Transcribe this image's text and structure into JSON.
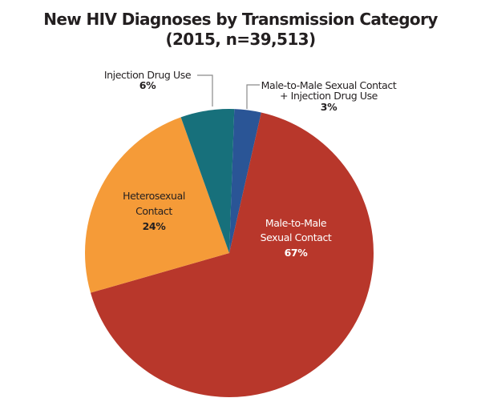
{
  "title": {
    "line1": "New HIV Diagnoses by Transmission Category",
    "line2": "(2015, n=39,513)"
  },
  "labels": {
    "msm_idu": {
      "line1": "Male-to-Male Sexual Contact",
      "line2": "+ Injection Drug Use",
      "pct": "3%"
    },
    "msm": {
      "line1": "Male-to-Male",
      "line2": "Sexual Contact",
      "pct": "67%"
    },
    "hetero": {
      "line1": "Heterosexual",
      "line2": "Contact",
      "pct": "24%"
    },
    "idu": {
      "line1": "Injection Drug Use",
      "pct": "6%"
    }
  },
  "colors": {
    "msm_idu": "#2a5596",
    "msm": "#b8372b",
    "hetero": "#f59b38",
    "idu": "#17707b",
    "leader": "#8a8a8a"
  },
  "chart_data": {
    "type": "pie",
    "title": "New HIV Diagnoses by Transmission Category (2015, n=39,513)",
    "total_n": 39513,
    "start_angle": "12 o'clock, clockwise",
    "categories": [
      "Male-to-Male Sexual Contact + Injection Drug Use",
      "Male-to-Male Sexual Contact",
      "Heterosexual Contact",
      "Injection Drug Use"
    ],
    "values": [
      3,
      67,
      24,
      6
    ],
    "unit": "percent",
    "colors": [
      "#2a5596",
      "#b8372b",
      "#f59b38",
      "#17707b"
    ],
    "legend": "none (direct labels)"
  }
}
